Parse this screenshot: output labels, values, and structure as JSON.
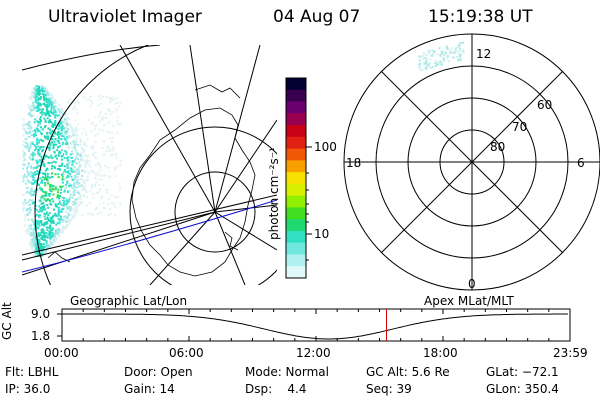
{
  "header": {
    "instrument": "Ultraviolet Imager",
    "date": "04 Aug 07",
    "time": "15:19:38 UT"
  },
  "colorbar": {
    "unit_label": "photon cm⁻²s⁻¹",
    "scale": "log",
    "ticks": [
      {
        "label": "100",
        "value": 100
      },
      {
        "label": "10",
        "value": 10
      }
    ],
    "colors": [
      "#000033",
      "#3a0050",
      "#6a0070",
      "#9a0050",
      "#c80018",
      "#e02010",
      "#f05808",
      "#f8a000",
      "#f8e000",
      "#d8f000",
      "#90f000",
      "#40e020",
      "#20d870",
      "#30e0c0",
      "#70e8e0",
      "#b0f0f0",
      "#e0f8f8"
    ]
  },
  "left_map": {
    "label": "Geographic Lat/Lon",
    "aurora_colors": [
      "#20d8b8",
      "#38e0d0",
      "#a0e8e8",
      "#d8f0f0",
      "#30e040"
    ]
  },
  "polar_plot": {
    "label": "Apex MLat/MLT",
    "mlt_labels": {
      "top": "12",
      "left": "18",
      "right": "6",
      "bottom": "0"
    },
    "lat_labels": [
      "60",
      "70",
      "80"
    ]
  },
  "timeline": {
    "ylabel": "GC Alt",
    "ytick_labels": [
      "9.0",
      "1.8"
    ],
    "x_labels": [
      "00:00",
      "06:00",
      "12:00",
      "18:00",
      "23:59"
    ],
    "current_time_hours": 15.33,
    "marker_color": "#d00000"
  },
  "info": {
    "filter": "Flt: LBHL",
    "ip": "IP: 36.0",
    "door": "Door: Open",
    "gain": "Gain: 14",
    "mode": "Mode: Normal",
    "dsp": "Dsp:    4.4",
    "gc_alt": "GC Alt: 5.6 Re",
    "seq": "Seq: 39",
    "glat": "GLat: −72.1",
    "glon": "GLon: 350.4"
  }
}
